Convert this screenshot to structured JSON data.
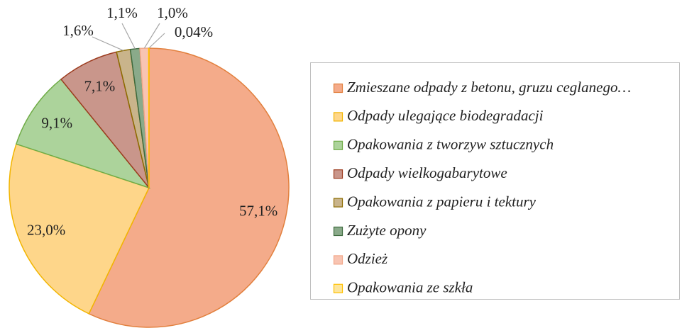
{
  "chart_data": {
    "type": "pie",
    "categories": [
      "Zmieszane odpady z betonu, gruzu ceglanego…",
      "Odpady ulegające biodegradacji",
      "Opakowania z tworzyw sztucznych",
      "Odpady wielkogabarytowe",
      "Opakowania z papieru i tektury",
      "Zużyte opony",
      "Odzież",
      "Opakowania ze szkła"
    ],
    "values": [
      57.1,
      23.0,
      9.1,
      7.1,
      1.6,
      1.1,
      1.0,
      0.04
    ],
    "value_labels": [
      "57,1%",
      "23,0%",
      "9,1%",
      "7,1%",
      "1,6%",
      "1,1%",
      "1,0%",
      "0,04%"
    ],
    "colors": [
      "#f4ab8a",
      "#fed68a",
      "#acd39b",
      "#c9968b",
      "#c9b48b",
      "#8aaa8a",
      "#f8c4b2",
      "#fde59c"
    ],
    "edge_colors": [
      "#e2803e",
      "#f2b500",
      "#6fac46",
      "#9c3b1e",
      "#8d6c00",
      "#3e6a3e",
      "#f2a88a",
      "#ffc000"
    ],
    "legend": "right"
  }
}
